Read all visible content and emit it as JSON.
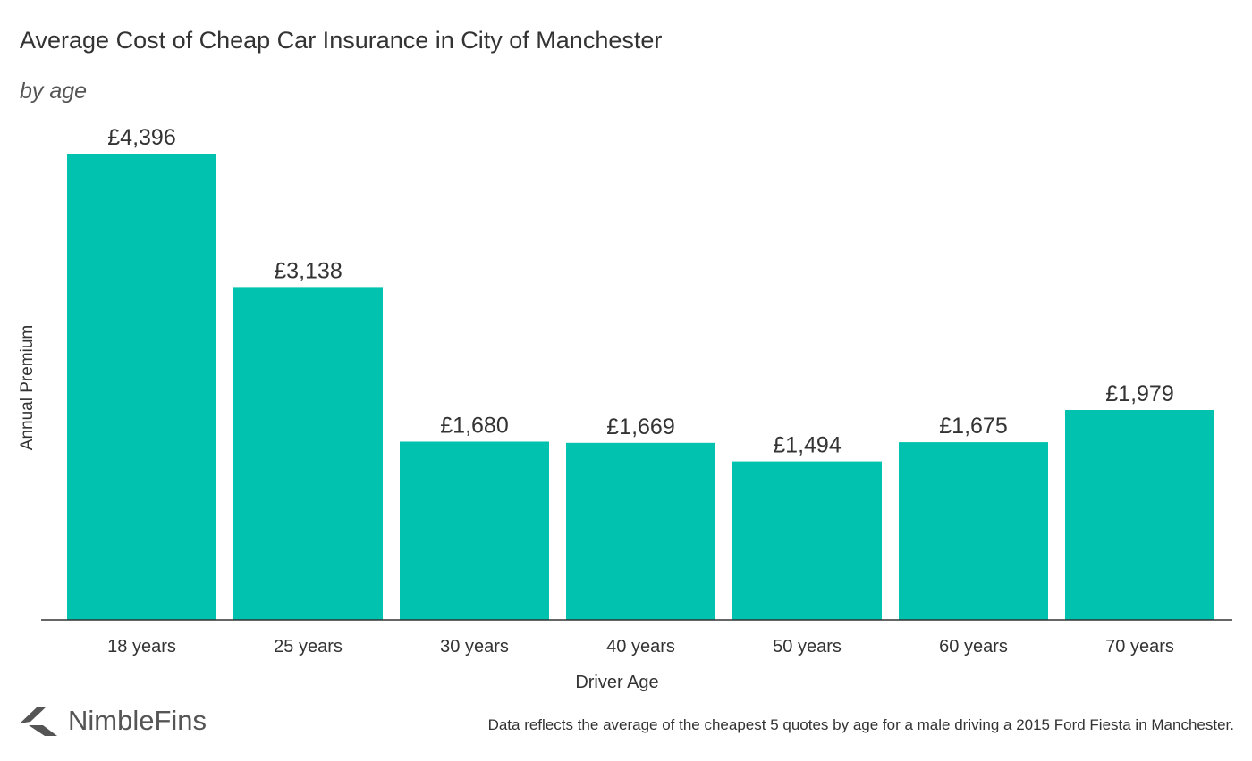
{
  "header": {
    "title": "Average Cost of Cheap Car Insurance in City of Manchester",
    "subtitle": "by age"
  },
  "chart_data": {
    "type": "bar",
    "categories": [
      "18 years",
      "25 years",
      "30 years",
      "40 years",
      "50 years",
      "60 years",
      "70 years"
    ],
    "values": [
      4396,
      3138,
      1680,
      1669,
      1494,
      1675,
      1979
    ],
    "value_labels": [
      "£4,396",
      "£3,138",
      "£1,680",
      "£1,669",
      "£1,494",
      "£1,675",
      "£1,979"
    ],
    "title": "Average Cost of Cheap Car Insurance in City of Manchester",
    "subtitle": "by age",
    "xlabel": "Driver Age",
    "ylabel": "Annual Premium",
    "ylim": [
      0,
      4396
    ],
    "grid": false,
    "bar_color": "#00C2AE"
  },
  "footer": {
    "brand": "NimbleFins",
    "note": "Data reflects the average of the cheapest 5 quotes by age for a male driving a 2015 Ford Fiesta in Manchester."
  },
  "icons": {
    "logo": "nimblefins-chevron-icon"
  },
  "colors": {
    "bar": "#00C2AE",
    "text": "#333333",
    "logo": "#555555"
  }
}
